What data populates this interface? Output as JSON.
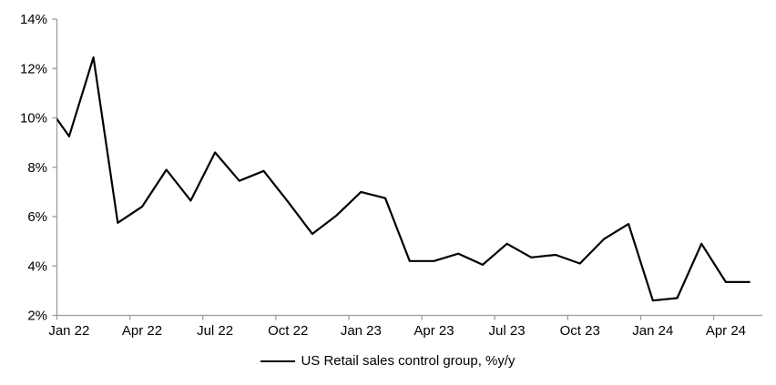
{
  "chart_data": {
    "type": "line",
    "title": "",
    "legend_position": "bottom-center",
    "background_color": "#FFFFFF",
    "axis_color": "#9B9B9B",
    "text_color": "#000000",
    "grid": false,
    "x": [
      "Dec 21",
      "Jan 22",
      "Feb 22",
      "Mar 22",
      "Apr 22",
      "May 22",
      "Jun 22",
      "Jul 22",
      "Aug 22",
      "Sep 22",
      "Oct 22",
      "Nov 22",
      "Dec 22",
      "Jan 23",
      "Feb 23",
      "Mar 23",
      "Apr 23",
      "May 23",
      "Jun 23",
      "Jul 23",
      "Aug 23",
      "Sep 23",
      "Oct 23",
      "Nov 23",
      "Dec 23",
      "Jan 24",
      "Feb 24",
      "Mar 24",
      "Apr 24",
      "May 24"
    ],
    "first_point_partially_clipped_at_left_axis": true,
    "series": [
      {
        "name": "US Retail sales control group, %y/y",
        "color": "#000000",
        "line_width": 2.2,
        "values": [
          10.65,
          9.25,
          12.45,
          5.75,
          6.4,
          7.9,
          6.65,
          8.6,
          7.45,
          7.85,
          6.6,
          5.3,
          6.05,
          7.0,
          6.75,
          4.2,
          4.2,
          4.5,
          4.05,
          4.9,
          4.35,
          4.45,
          4.1,
          5.1,
          5.7,
          2.6,
          2.7,
          4.9,
          3.35,
          3.35
        ]
      }
    ],
    "xlabel": "",
    "ylabel": "",
    "xtick_labels": [
      "Jan 22",
      "Apr 22",
      "Jul 22",
      "Oct 22",
      "Jan 23",
      "Apr 23",
      "Jul 23",
      "Oct 23",
      "Jan 24",
      "Apr 24"
    ],
    "xtick_interval_months": 3,
    "ylim": [
      2,
      14
    ],
    "ytick_values": [
      2,
      4,
      6,
      8,
      10,
      12,
      14
    ],
    "ytick_labels": [
      "2%",
      "4%",
      "6%",
      "8%",
      "10%",
      "12%",
      "14%"
    ]
  }
}
